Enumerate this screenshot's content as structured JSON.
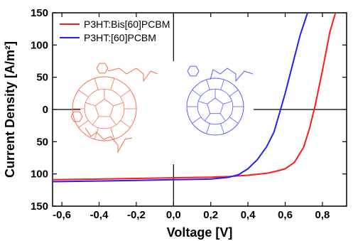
{
  "chart_data": {
    "type": "line",
    "title": "",
    "xlabel": "Voltage [V]",
    "ylabel": "Current Density [A/m²]",
    "xlim": [
      -0.65,
      0.93
    ],
    "ylim": [
      -150,
      150
    ],
    "y_axis_inverted_labels": true,
    "xticks": [
      -0.6,
      -0.4,
      -0.2,
      0.0,
      0.2,
      0.4,
      0.6,
      0.8
    ],
    "xtick_labels": [
      "-0,6",
      "-0,4",
      "-0,2",
      "0,0",
      "0,2",
      "0,4",
      "0,6",
      "0,8"
    ],
    "yticks": [
      150,
      100,
      50,
      0,
      -50,
      -100,
      -150
    ],
    "ytick_labels": [
      "150",
      "100",
      "50",
      "0",
      "50",
      "100",
      "150"
    ],
    "grid": false,
    "legend_position": "top-left",
    "series": [
      {
        "name": "P3HT:Bis[60]PCBM",
        "color": "#ff1a1a",
        "x": [
          -0.65,
          -0.4,
          -0.2,
          0.0,
          0.2,
          0.3,
          0.4,
          0.5,
          0.55,
          0.6,
          0.65,
          0.7,
          0.73,
          0.76,
          0.8,
          0.84,
          0.87
        ],
        "y": [
          -109,
          -108,
          -107,
          -106,
          -105,
          -104,
          -102,
          -99,
          -96,
          -92,
          -82,
          -58,
          -30,
          5,
          60,
          120,
          150
        ]
      },
      {
        "name": "P3HT:[60]PCBM",
        "color": "#2020ff",
        "x": [
          -0.65,
          -0.4,
          -0.2,
          0.0,
          0.2,
          0.3,
          0.35,
          0.4,
          0.45,
          0.5,
          0.54,
          0.57,
          0.6,
          0.64,
          0.68,
          0.72
        ],
        "y": [
          -112,
          -111,
          -110,
          -109,
          -108,
          -105,
          -101,
          -92,
          -78,
          -58,
          -35,
          -5,
          25,
          70,
          115,
          150
        ]
      }
    ],
    "annotations": {
      "molecules": [
        {
          "name": "Bis[60]PCBM",
          "color": "#ff6b4a"
        },
        {
          "name": "[60]PCBM",
          "color": "#5a5aff"
        }
      ]
    }
  }
}
